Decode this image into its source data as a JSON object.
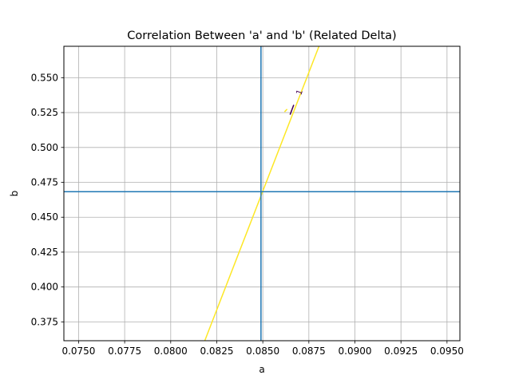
{
  "chart_data": {
    "type": "line",
    "title": "Correlation Between 'a' and 'b' (Related Delta)",
    "xlabel": "a",
    "ylabel": "b",
    "xlim": [
      0.0742,
      0.0957
    ],
    "ylim": [
      0.3615,
      0.5725
    ],
    "grid": true,
    "x_ticks": [
      0.075,
      0.0775,
      0.08,
      0.0825,
      0.085,
      0.0875,
      0.09,
      0.0925,
      0.095
    ],
    "x_tick_labels": [
      "0.0750",
      "0.0775",
      "0.0800",
      "0.0825",
      "0.0850",
      "0.0875",
      "0.0900",
      "0.0925",
      "0.0950"
    ],
    "y_ticks": [
      0.375,
      0.4,
      0.425,
      0.45,
      0.475,
      0.5,
      0.525,
      0.55
    ],
    "y_tick_labels": [
      "0.375",
      "0.400",
      "0.425",
      "0.450",
      "0.475",
      "0.500",
      "0.525",
      "0.550"
    ],
    "reference_lines": {
      "vertical_x": 0.0849,
      "horizontal_y": 0.4683,
      "color": "#1f77b4"
    },
    "series": [
      {
        "x": [
          0.08185,
          0.08805
        ],
        "y": [
          0.3615,
          0.5725
        ],
        "color": "#fde725"
      }
    ],
    "contour_segments": [
      {
        "x": [
          0.08648,
          0.08668
        ],
        "y": [
          0.5235,
          0.5305
        ],
        "color": "#440154"
      },
      {
        "x": [
          0.08618,
          0.08632
        ],
        "y": [
          0.5255,
          0.5275
        ],
        "color": "#fde725"
      }
    ],
    "contour_label": {
      "text": "1",
      "x": 0.087,
      "y": 0.5395,
      "color": "#440154",
      "rotation": -70
    }
  }
}
